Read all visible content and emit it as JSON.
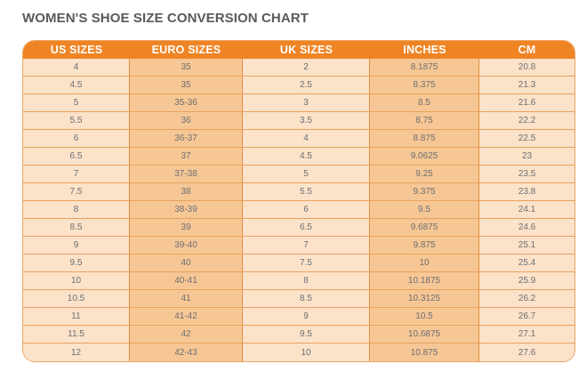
{
  "page": {
    "title": "WOMEN'S SHOE SIZE CONVERSION CHART"
  },
  "colors": {
    "header_bg": "#EF8424",
    "header_text": "#FFFFFF",
    "light_cell_bg": "#FBE2C9",
    "dark_cell_bg": "#F6C795",
    "row_border": "#E9A15C",
    "column_border": "#E28E3E",
    "cell_text": "#6D6E71",
    "title_text": "#58595B"
  },
  "chart_data": {
    "type": "table",
    "title": "WOMEN'S SHOE SIZE CONVERSION CHART",
    "columns": [
      "US SIZES",
      "EURO SIZES",
      "UK SIZES",
      "INCHES",
      "CM"
    ],
    "rows": [
      [
        "4",
        "35",
        "2",
        "8.1875",
        "20.8"
      ],
      [
        "4.5",
        "35",
        "2.5",
        "8.375",
        "21.3"
      ],
      [
        "5",
        "35-36",
        "3",
        "8.5",
        "21.6"
      ],
      [
        "5.5",
        "36",
        "3.5",
        "8.75",
        "22.2"
      ],
      [
        "6",
        "36-37",
        "4",
        "8.875",
        "22.5"
      ],
      [
        "6.5",
        "37",
        "4.5",
        "9.0625",
        "23"
      ],
      [
        "7",
        "37-38",
        "5",
        "9.25",
        "23.5"
      ],
      [
        "7.5",
        "38",
        "5.5",
        "9.375",
        "23.8"
      ],
      [
        "8",
        "38-39",
        "6",
        "9.5",
        "24.1"
      ],
      [
        "8.5",
        "39",
        "6.5",
        "9.6875",
        "24.6"
      ],
      [
        "9",
        "39-40",
        "7",
        "9.875",
        "25.1"
      ],
      [
        "9.5",
        "40",
        "7.5",
        "10",
        "25.4"
      ],
      [
        "10",
        "40-41",
        "8",
        "10.1875",
        "25.9"
      ],
      [
        "10.5",
        "41",
        "8.5",
        "10.3125",
        "26.2"
      ],
      [
        "11",
        "41-42",
        "9",
        "10.5",
        "26.7"
      ],
      [
        "11.5",
        "42",
        "9.5",
        "10.6875",
        "27.1"
      ],
      [
        "12",
        "42-43",
        "10",
        "10.875",
        "27.6"
      ]
    ]
  }
}
